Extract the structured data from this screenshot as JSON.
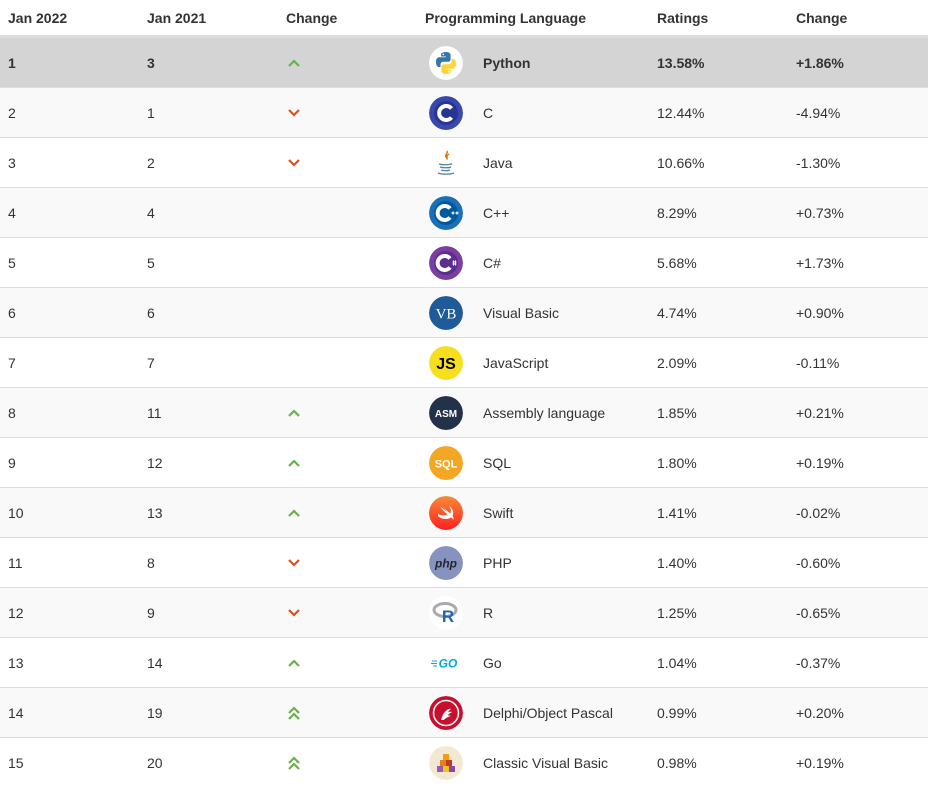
{
  "header": {
    "col1": "Jan 2022",
    "col2": "Jan 2021",
    "col3": "Change",
    "col4": "Programming Language",
    "col5": "Ratings",
    "col6": "Change"
  },
  "rows": [
    {
      "rank": "1",
      "prev": "3",
      "trend": "up",
      "lang": "Python",
      "icon": "python-icon",
      "rating": "13.58%",
      "change": "+1.86%"
    },
    {
      "rank": "2",
      "prev": "1",
      "trend": "down",
      "lang": "C",
      "icon": "c-icon",
      "rating": "12.44%",
      "change": "-4.94%"
    },
    {
      "rank": "3",
      "prev": "2",
      "trend": "down",
      "lang": "Java",
      "icon": "java-icon",
      "rating": "10.66%",
      "change": "-1.30%"
    },
    {
      "rank": "4",
      "prev": "4",
      "trend": "none",
      "lang": "C++",
      "icon": "cpp-icon",
      "rating": "8.29%",
      "change": "+0.73%"
    },
    {
      "rank": "5",
      "prev": "5",
      "trend": "none",
      "lang": "C#",
      "icon": "csharp-icon",
      "rating": "5.68%",
      "change": "+1.73%"
    },
    {
      "rank": "6",
      "prev": "6",
      "trend": "none",
      "lang": "Visual Basic",
      "icon": "visual-basic-icon",
      "rating": "4.74%",
      "change": "+0.90%"
    },
    {
      "rank": "7",
      "prev": "7",
      "trend": "none",
      "lang": "JavaScript",
      "icon": "javascript-icon",
      "rating": "2.09%",
      "change": "-0.11%"
    },
    {
      "rank": "8",
      "prev": "11",
      "trend": "up",
      "lang": "Assembly language",
      "icon": "assembly-icon",
      "rating": "1.85%",
      "change": "+0.21%"
    },
    {
      "rank": "9",
      "prev": "12",
      "trend": "up",
      "lang": "SQL",
      "icon": "sql-icon",
      "rating": "1.80%",
      "change": "+0.19%"
    },
    {
      "rank": "10",
      "prev": "13",
      "trend": "up",
      "lang": "Swift",
      "icon": "swift-icon",
      "rating": "1.41%",
      "change": "-0.02%"
    },
    {
      "rank": "11",
      "prev": "8",
      "trend": "down",
      "lang": "PHP",
      "icon": "php-icon",
      "rating": "1.40%",
      "change": "-0.60%"
    },
    {
      "rank": "12",
      "prev": "9",
      "trend": "down",
      "lang": "R",
      "icon": "r-icon",
      "rating": "1.25%",
      "change": "-0.65%"
    },
    {
      "rank": "13",
      "prev": "14",
      "trend": "up",
      "lang": "Go",
      "icon": "go-icon",
      "rating": "1.04%",
      "change": "-0.37%"
    },
    {
      "rank": "14",
      "prev": "19",
      "trend": "double-up",
      "lang": "Delphi/Object Pascal",
      "icon": "delphi-icon",
      "rating": "0.99%",
      "change": "+0.20%"
    },
    {
      "rank": "15",
      "prev": "20",
      "trend": "double-up",
      "lang": "Classic Visual Basic",
      "icon": "classic-vb-icon",
      "rating": "0.98%",
      "change": "+0.19%"
    }
  ],
  "icon_text": {
    "vb": "VB",
    "js": "JS",
    "asm": "ASM",
    "sql": "SQL",
    "php": "php",
    "r": "R",
    "go": "GO"
  },
  "colors": {
    "up_arrow": "#6ab04c",
    "down_arrow": "#d9531e",
    "highlight_row": "#d4d4d4",
    "alt_row": "#f9f9f9",
    "border": "#dddddd",
    "text": "#333333"
  }
}
